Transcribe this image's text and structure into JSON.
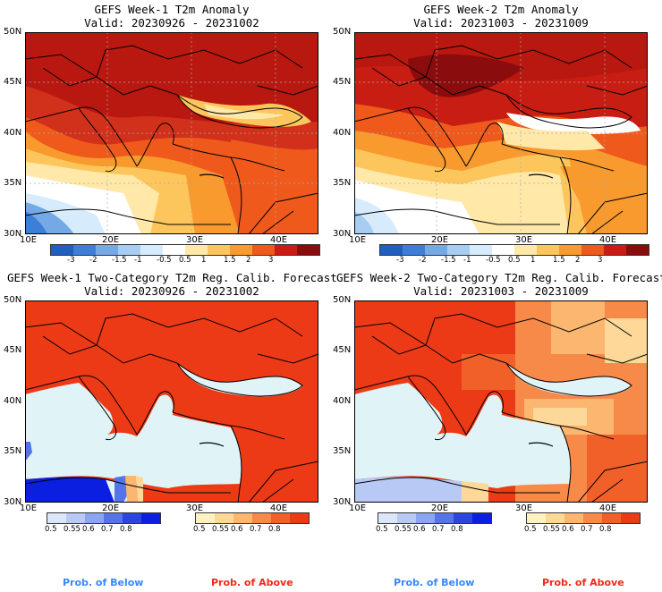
{
  "panels": [
    {
      "title1": "GEFS Week-1 T2m Anomaly",
      "title2": "Valid: 20230926 - 20231002"
    },
    {
      "title1": "GEFS Week-2 T2m Anomaly",
      "title2": "Valid: 20231003 - 20231009"
    },
    {
      "title1": "GEFS Week-1 Two-Category T2m Reg. Calib. Forecast",
      "title2": "Valid: 20230926 - 20231002"
    },
    {
      "title1": "GEFS Week-2 Two-Category T2m Reg. Calib. Forecast",
      "title2": "Valid: 20231003 - 20231009"
    }
  ],
  "lat_labels": [
    "50N",
    "45N",
    "40N",
    "35N",
    "30N"
  ],
  "lon_labels": [
    "10E",
    "20E",
    "30E",
    "40E"
  ],
  "anomaly_colorbar": {
    "labels": [
      "-3",
      "-2",
      "-1.5",
      "-1",
      "-0.5",
      "0.5",
      "1",
      "1.5",
      "2",
      "3"
    ],
    "colors": [
      "#1f5fbf",
      "#3d7fd8",
      "#74a9e6",
      "#a8cdf2",
      "#d6ebfb",
      "#ffffff",
      "#ffe8a8",
      "#fdc65c",
      "#f89a2e",
      "#ef5a1c",
      "#c81d12",
      "#8b0c0c"
    ]
  },
  "prob_below_colorbar": {
    "labels": [
      "0.5",
      "0.55",
      "0.6",
      "0.7",
      "0.8"
    ],
    "colors": [
      "#dce6fa",
      "#b9c9f5",
      "#8aa6f0",
      "#5574e8",
      "#2c44e0",
      "#0a1fe0"
    ]
  },
  "prob_above_colorbar": {
    "labels": [
      "0.5",
      "0.55",
      "0.6",
      "0.7",
      "0.8"
    ],
    "colors": [
      "#fff2c0",
      "#fdd899",
      "#fbb670",
      "#f78a48",
      "#f2602a",
      "#ec3a17"
    ]
  },
  "footer": {
    "below": "Prob. of Below",
    "above": "Prob. of Above"
  },
  "colors": {
    "below_text": "#3a86ff",
    "above_text": "#ee2a1a",
    "ocean_light": "#e0f4f8",
    "above_red": "#ec3a17",
    "deep_red": "#b8180f"
  }
}
